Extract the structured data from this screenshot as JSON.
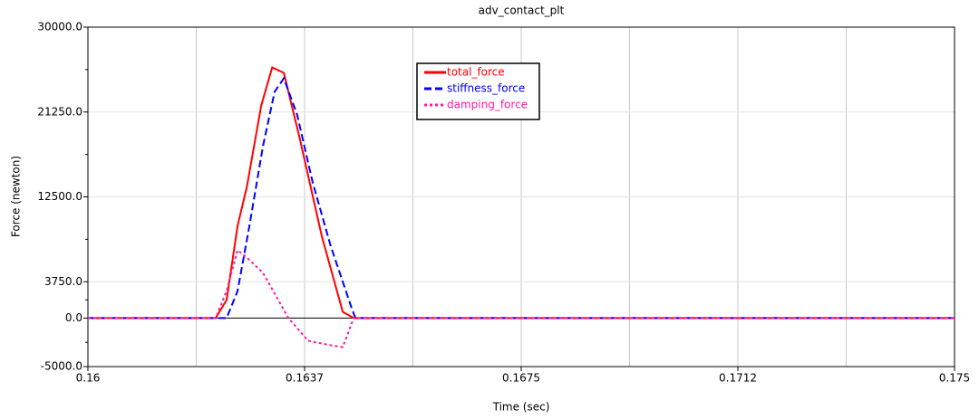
{
  "chart_data": {
    "type": "line",
    "title": "adv_contact_plt",
    "x_label": "Time (sec)",
    "y_label": "Force (newton)",
    "xlim": [
      0.16,
      0.175
    ],
    "xticks": [
      {
        "value": 0.16,
        "label": "0.16"
      },
      {
        "value": 0.16375,
        "label": "0.1637"
      },
      {
        "value": 0.1675,
        "label": "0.1675"
      },
      {
        "value": 0.17125,
        "label": "0.1712"
      },
      {
        "value": 0.175,
        "label": "0.175"
      }
    ],
    "ylim": [
      -5000,
      30000
    ],
    "yticks": [
      {
        "value": -5000,
        "label": "-5000.0"
      },
      {
        "value": 0,
        "label": "0.0"
      },
      {
        "value": 3750,
        "label": "3750.0"
      },
      {
        "value": 12500,
        "label": "12500.0"
      },
      {
        "value": 21250,
        "label": "21250.0"
      },
      {
        "value": 30000,
        "label": "30000.0"
      }
    ],
    "grid": true,
    "minor_grid": true,
    "zero_line": true,
    "legend": "top-center",
    "series": [
      {
        "name": "total_force",
        "color": "#ff0000",
        "line_style": "solid",
        "x": [
          0.16,
          0.16221,
          0.1624,
          0.16259,
          0.16275,
          0.163,
          0.16319,
          0.16339,
          0.16366,
          0.16405,
          0.16441,
          0.1646,
          0.175
        ],
        "values": [
          0,
          0,
          1870,
          9520,
          13530,
          21930,
          25850,
          25290,
          18670,
          8400,
          650,
          0,
          0
        ]
      },
      {
        "name": "stiffness_force",
        "color": "#0000ff",
        "line_style": "dashed",
        "x": [
          0.16,
          0.1624,
          0.16259,
          0.16279,
          0.16303,
          0.16323,
          0.16339,
          0.16362,
          0.16389,
          0.1642,
          0.16457,
          0.16463,
          0.175
        ],
        "values": [
          0,
          0,
          2800,
          9330,
          17730,
          23330,
          24730,
          21000,
          14000,
          7470,
          930,
          0,
          0
        ]
      },
      {
        "name": "damping_force",
        "color": "#ff1aa0",
        "line_style": "dotted",
        "x": [
          0.16,
          0.16221,
          0.1624,
          0.16259,
          0.16275,
          0.16303,
          0.16347,
          0.16381,
          0.1642,
          0.16441,
          0.1646,
          0.175
        ],
        "values": [
          0,
          0,
          2800,
          7000,
          6250,
          4670,
          0,
          -2330,
          -2800,
          -2990,
          0,
          0
        ]
      }
    ]
  }
}
